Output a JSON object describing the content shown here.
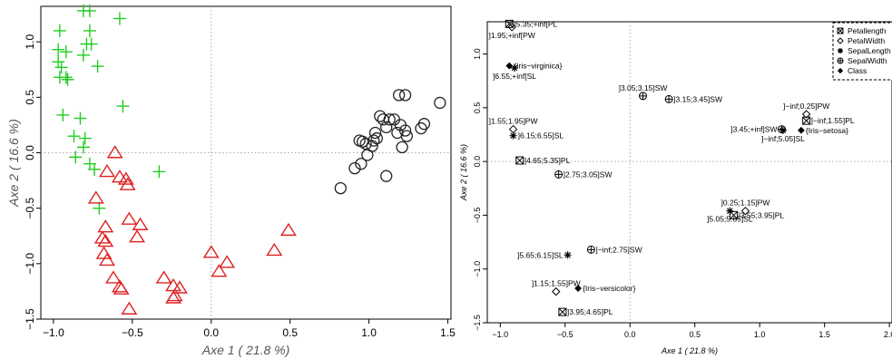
{
  "chart_data": [
    {
      "type": "scatter",
      "title": "",
      "xlabel": "Axe 1 ( 21.8  %)",
      "ylabel": "Axe 2 ( 16.6  %)",
      "xlim": [
        -1.08,
        1.52
      ],
      "ylim": [
        -1.5,
        1.32
      ],
      "xticks": [
        -1.0,
        -0.5,
        0.0,
        0.5,
        1.0,
        1.5
      ],
      "xtick_labels": [
        "−1.0",
        "−0.5",
        "0.0",
        "0.5",
        "1.0",
        "1.5"
      ],
      "yticks": [
        -1.5,
        -1.0,
        -0.5,
        0.0,
        0.5,
        1.0
      ],
      "ytick_labels": [
        "−1.5",
        "−1.0",
        "−0.5",
        "0.0",
        "0.5",
        "1.0"
      ],
      "reference_lines": {
        "x": 0,
        "y": 0
      },
      "grid": false,
      "legend": null,
      "series": [
        {
          "marker": "cross",
          "color": "#22cc22",
          "points": [
            [
              -0.81,
              1.28
            ],
            [
              -0.77,
              1.28
            ],
            [
              -0.58,
              1.21
            ],
            [
              -0.96,
              1.1
            ],
            [
              -0.77,
              1.1
            ],
            [
              -0.79,
              0.98
            ],
            [
              -0.76,
              0.98
            ],
            [
              -0.97,
              0.93
            ],
            [
              -0.92,
              0.91
            ],
            [
              -0.81,
              0.88
            ],
            [
              -0.97,
              0.82
            ],
            [
              -0.72,
              0.78
            ],
            [
              -0.95,
              0.77
            ],
            [
              -0.96,
              0.68
            ],
            [
              -0.92,
              0.68
            ],
            [
              -0.91,
              0.66
            ],
            [
              -0.56,
              0.42
            ],
            [
              -0.94,
              0.34
            ],
            [
              -0.83,
              0.31
            ],
            [
              -0.87,
              0.15
            ],
            [
              -0.8,
              0.13
            ],
            [
              -0.81,
              0.05
            ],
            [
              -0.86,
              -0.04
            ],
            [
              -0.77,
              -0.1
            ],
            [
              -0.74,
              -0.15
            ],
            [
              -0.33,
              -0.17
            ],
            [
              -0.71,
              -0.5
            ]
          ]
        },
        {
          "marker": "triangle",
          "color": "#dd2222",
          "points": [
            [
              -0.61,
              0.0
            ],
            [
              -0.66,
              -0.17
            ],
            [
              -0.58,
              -0.22
            ],
            [
              -0.54,
              -0.24
            ],
            [
              -0.53,
              -0.29
            ],
            [
              -0.73,
              -0.41
            ],
            [
              -0.52,
              -0.6
            ],
            [
              -0.45,
              -0.65
            ],
            [
              -0.67,
              -0.67
            ],
            [
              -0.47,
              -0.76
            ],
            [
              -0.69,
              -0.77
            ],
            [
              -0.67,
              -0.8
            ],
            [
              -0.68,
              -0.91
            ],
            [
              -0.66,
              -0.97
            ],
            [
              0.0,
              -0.9
            ],
            [
              0.1,
              -0.99
            ],
            [
              0.05,
              -1.07
            ],
            [
              0.4,
              -0.88
            ],
            [
              0.49,
              -0.7
            ],
            [
              -0.62,
              -1.13
            ],
            [
              -0.58,
              -1.21
            ],
            [
              -0.57,
              -1.23
            ],
            [
              -0.3,
              -1.13
            ],
            [
              -0.24,
              -1.2
            ],
            [
              -0.2,
              -1.22
            ],
            [
              -0.23,
              -1.29
            ],
            [
              -0.24,
              -1.31
            ],
            [
              -0.52,
              -1.41
            ]
          ]
        },
        {
          "marker": "circle",
          "color": "#222222",
          "points": [
            [
              1.45,
              0.45
            ],
            [
              1.23,
              0.52
            ],
            [
              1.19,
              0.52
            ],
            [
              1.35,
              0.26
            ],
            [
              1.33,
              0.22
            ],
            [
              1.07,
              0.33
            ],
            [
              1.09,
              0.3
            ],
            [
              1.13,
              0.3
            ],
            [
              1.16,
              0.3
            ],
            [
              1.11,
              0.23
            ],
            [
              1.2,
              0.25
            ],
            [
              1.23,
              0.2
            ],
            [
              1.24,
              0.15
            ],
            [
              1.18,
              0.18
            ],
            [
              1.21,
              0.05
            ],
            [
              1.04,
              0.18
            ],
            [
              1.05,
              0.13
            ],
            [
              1.03,
              0.11
            ],
            [
              0.94,
              0.11
            ],
            [
              0.96,
              0.1
            ],
            [
              0.98,
              0.08
            ],
            [
              1.02,
              0.06
            ],
            [
              0.99,
              -0.02
            ],
            [
              0.95,
              -0.1
            ],
            [
              0.91,
              -0.14
            ],
            [
              1.11,
              -0.21
            ],
            [
              0.82,
              -0.32
            ]
          ]
        }
      ]
    },
    {
      "type": "scatter",
      "title": "",
      "xlabel": "Axe 1 ( 21.8  %)",
      "ylabel": "Axe 2 ( 16.6  %)",
      "xlim": [
        -1.1,
        2.02
      ],
      "ylim": [
        -1.5,
        1.3
      ],
      "xticks": [
        -1.0,
        -0.5,
        0.0,
        0.5,
        1.0,
        1.5,
        2.0
      ],
      "xtick_labels": [
        "−1.0",
        "−0.5",
        "0.0",
        "0.5",
        "1.0",
        "1.5",
        "2.0"
      ],
      "yticks": [
        -1.5,
        -1.0,
        -0.5,
        0.0,
        0.5,
        1.0
      ],
      "ytick_labels": [
        "−1.5",
        "−1.0",
        "−0.5",
        "0.0",
        "0.5",
        "1.0"
      ],
      "reference_lines": {
        "x": 0,
        "y": 0
      },
      "grid": false,
      "legend": {
        "placement": "top-right",
        "entries": [
          {
            "name": "Petallength",
            "symbol": "boxx"
          },
          {
            "name": "PetalWidth",
            "symbol": "diamond"
          },
          {
            "name": "SepalLength",
            "symbol": "star"
          },
          {
            "name": "SepalWidth",
            "symbol": "oplus"
          },
          {
            "name": "Class",
            "symbol": "filled-diamond"
          }
        ]
      },
      "categories": [
        {
          "name": "]5.35;+inf[PL",
          "var": "Petallength",
          "x": -0.93,
          "y": 1.28,
          "label_dir": "right"
        },
        {
          "name": "]1.95;+inf[PW",
          "var": "PetalWidth",
          "x": -0.91,
          "y": 1.25,
          "label_dir": "below"
        },
        {
          "name": "{Iris−virginica}",
          "var": "Class",
          "x": -0.93,
          "y": 0.89,
          "label_dir": "right"
        },
        {
          "name": "]6.55;+inf[SL",
          "var": "SepalLength",
          "x": -0.89,
          "y": 0.87,
          "label_dir": "below"
        },
        {
          "name": "]3.05;3.15]SW",
          "var": "SepalWidth",
          "x": 0.1,
          "y": 0.61,
          "label_dir": "above"
        },
        {
          "name": "]3.15;3.45]SW",
          "var": "SepalWidth",
          "x": 0.3,
          "y": 0.58,
          "label_dir": "right"
        },
        {
          "name": "]1.55;1.95]PW",
          "var": "PetalWidth",
          "x": -0.9,
          "y": 0.3,
          "label_dir": "above"
        },
        {
          "name": "]6.15;6.55]SL",
          "var": "SepalLength",
          "x": -0.9,
          "y": 0.24,
          "label_dir": "right"
        },
        {
          "name": "]4.65;5.35]PL",
          "var": "Petallength",
          "x": -0.85,
          "y": 0.01,
          "label_dir": "right"
        },
        {
          "name": "]2.75;3.05]SW",
          "var": "SepalWidth",
          "x": -0.55,
          "y": -0.12,
          "label_dir": "right"
        },
        {
          "name": "]−inf;0.25]PW",
          "var": "PetalWidth",
          "x": 1.36,
          "y": 0.44,
          "label_dir": "above"
        },
        {
          "name": "]−inf;1.55]PL",
          "var": "Petallength",
          "x": 1.36,
          "y": 0.38,
          "label_dir": "right"
        },
        {
          "name": "]3.45;+inf]SW",
          "var": "SepalWidth",
          "x": 1.17,
          "y": 0.3,
          "label_dir": "left"
        },
        {
          "name": "]−inf;5.05]SL",
          "var": "SepalLength",
          "x": 1.18,
          "y": 0.29,
          "label_dir": "below"
        },
        {
          "name": "{Iris−setosa}",
          "var": "Class",
          "x": 1.32,
          "y": 0.29,
          "label_dir": "right"
        },
        {
          "name": "]0.25;1.15]PW",
          "var": "PetalWidth",
          "x": 0.89,
          "y": -0.46,
          "label_dir": "above"
        },
        {
          "name": "]3.55;3.95]PL",
          "var": "Petallength",
          "x": 0.8,
          "y": -0.5,
          "label_dir": "right"
        },
        {
          "name": "]5.05;5.65]SL",
          "var": "SepalLength",
          "x": 0.77,
          "y": -0.46,
          "label_dir": "below"
        },
        {
          "name": "]5.65;6.15]SL",
          "var": "SepalLength",
          "x": -0.48,
          "y": -0.87,
          "label_dir": "left"
        },
        {
          "name": "]−inf;2.75]SW",
          "var": "SepalWidth",
          "x": -0.3,
          "y": -0.82,
          "label_dir": "right"
        },
        {
          "name": "]1.15;1.55]PW",
          "var": "PetalWidth",
          "x": -0.57,
          "y": -1.21,
          "label_dir": "above"
        },
        {
          "name": "{Iris−versicolor}",
          "var": "Class",
          "x": -0.4,
          "y": -1.18,
          "label_dir": "right"
        },
        {
          "name": "]3.95;4.65]PL",
          "var": "Petallength",
          "x": -0.52,
          "y": -1.4,
          "label_dir": "right"
        }
      ]
    }
  ]
}
